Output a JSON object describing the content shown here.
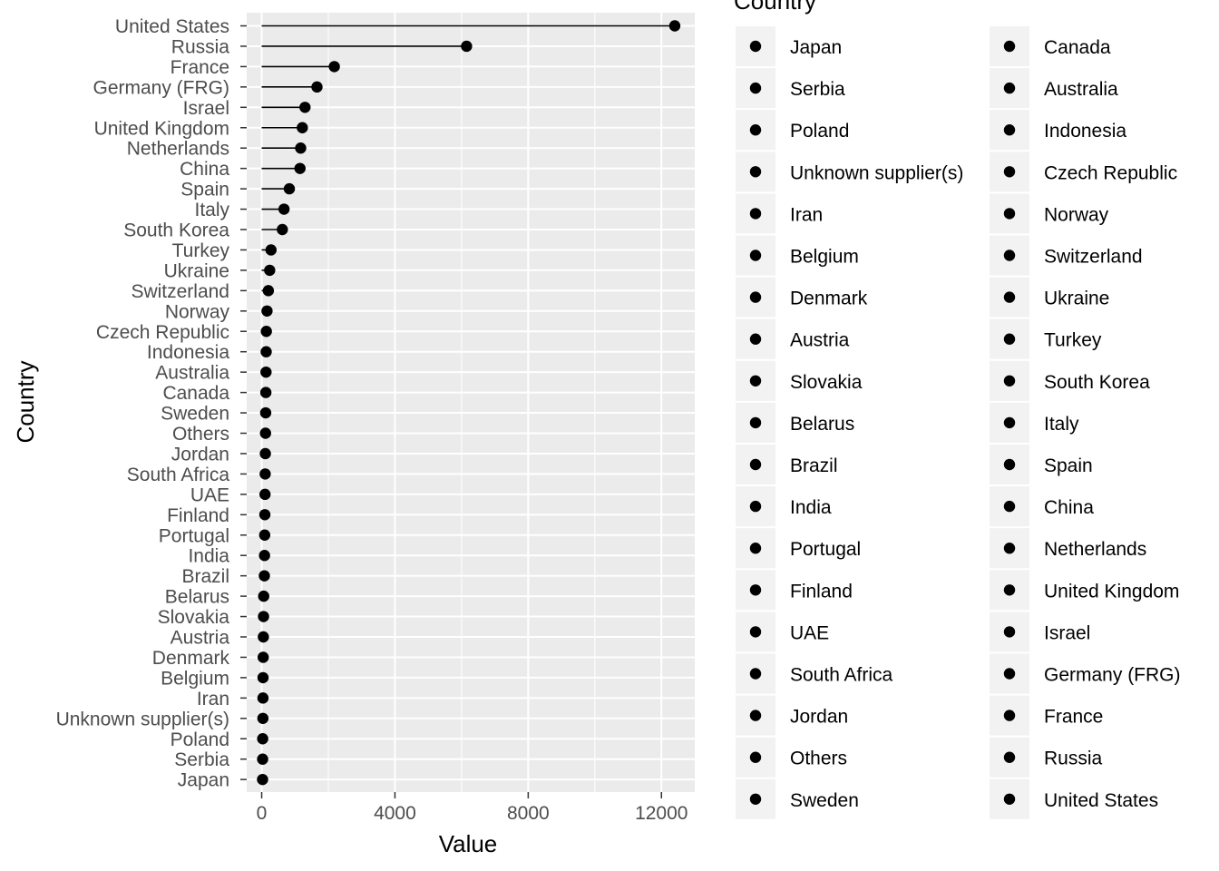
{
  "chart_data": {
    "type": "lollipop",
    "xlabel": "Value",
    "ylabel": "Country",
    "xlim": [
      -450,
      13000
    ],
    "x_ticks": [
      0,
      4000,
      8000,
      12000
    ],
    "x_tick_labels": [
      "0",
      "4000",
      "8000",
      "12000"
    ],
    "grid": true,
    "legend_title": "Country",
    "legend_position": "right",
    "categories": [
      "United States",
      "Russia",
      "France",
      "Germany (FRG)",
      "Israel",
      "United Kingdom",
      "Netherlands",
      "China",
      "Spain",
      "Italy",
      "South Korea",
      "Turkey",
      "Ukraine",
      "Switzerland",
      "Norway",
      "Czech Republic",
      "Indonesia",
      "Australia",
      "Canada",
      "Sweden",
      "Others",
      "Jordan",
      "South Africa",
      "UAE",
      "Finland",
      "Portugal",
      "India",
      "Brazil",
      "Belarus",
      "Slovakia",
      "Austria",
      "Denmark",
      "Belgium",
      "Iran",
      "Unknown supplier(s)",
      "Poland",
      "Serbia",
      "Japan"
    ],
    "values": [
      12400,
      6150,
      2180,
      1660,
      1300,
      1220,
      1170,
      1150,
      830,
      670,
      620,
      280,
      240,
      200,
      160,
      140,
      135,
      130,
      125,
      120,
      115,
      110,
      105,
      100,
      95,
      90,
      85,
      80,
      60,
      55,
      50,
      45,
      40,
      38,
      36,
      30,
      28,
      26
    ],
    "legend_columns": [
      [
        "Japan",
        "Serbia",
        "Poland",
        "Unknown supplier(s)",
        "Iran",
        "Belgium",
        "Denmark",
        "Austria",
        "Slovakia",
        "Belarus",
        "Brazil",
        "India",
        "Portugal",
        "Finland",
        "UAE",
        "South Africa",
        "Jordan",
        "Others",
        "Sweden"
      ],
      [
        "Canada",
        "Australia",
        "Indonesia",
        "Czech Republic",
        "Norway",
        "Switzerland",
        "Ukraine",
        "Turkey",
        "South Korea",
        "Italy",
        "Spain",
        "China",
        "Netherlands",
        "United Kingdom",
        "Israel",
        "Germany (FRG)",
        "France",
        "Russia",
        "United States"
      ]
    ]
  }
}
